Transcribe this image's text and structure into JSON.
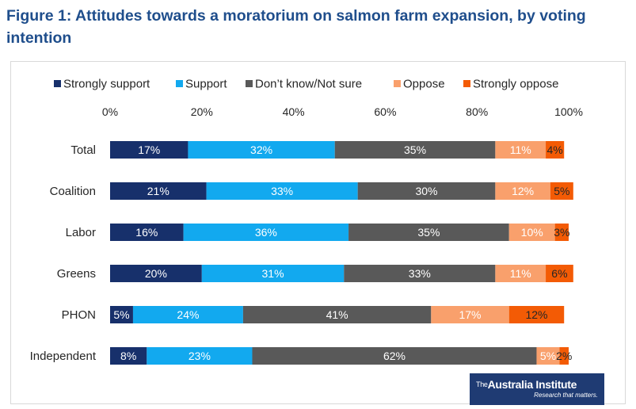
{
  "figure_title": "Figure 1: Attitudes towards a moratorium on salmon farm expansion, by voting intention",
  "logo": {
    "the": "The",
    "name": "Australia Institute",
    "tagline": "Research that matters."
  },
  "colors": {
    "strongly_support": "#17306b",
    "support": "#12a9ef",
    "dont_know": "#595959",
    "oppose": "#f9a06c",
    "strongly_oppose": "#f35b05"
  },
  "chart_data": {
    "type": "bar",
    "orientation": "horizontal",
    "stacked": true,
    "title": "Figure 1: Attitudes towards a moratorium on salmon farm expansion, by voting intention",
    "categories": [
      "Total",
      "Coalition",
      "Labor",
      "Greens",
      "PHON",
      "Independent"
    ],
    "series": [
      {
        "name": "Strongly support",
        "values": [
          17,
          21,
          16,
          20,
          5,
          8
        ]
      },
      {
        "name": "Support",
        "values": [
          32,
          33,
          36,
          31,
          24,
          23
        ]
      },
      {
        "name": "Don’t know/Not sure",
        "values": [
          35,
          30,
          35,
          33,
          41,
          62
        ]
      },
      {
        "name": "Oppose",
        "values": [
          11,
          12,
          10,
          11,
          17,
          5
        ]
      },
      {
        "name": "Strongly oppose",
        "values": [
          4,
          5,
          3,
          6,
          12,
          2
        ]
      }
    ],
    "value_suffix": "%",
    "xlim": [
      0,
      100
    ],
    "x_ticks": [
      "0%",
      "20%",
      "40%",
      "60%",
      "80%",
      "100%"
    ],
    "legend_position": "top",
    "grid": false
  }
}
